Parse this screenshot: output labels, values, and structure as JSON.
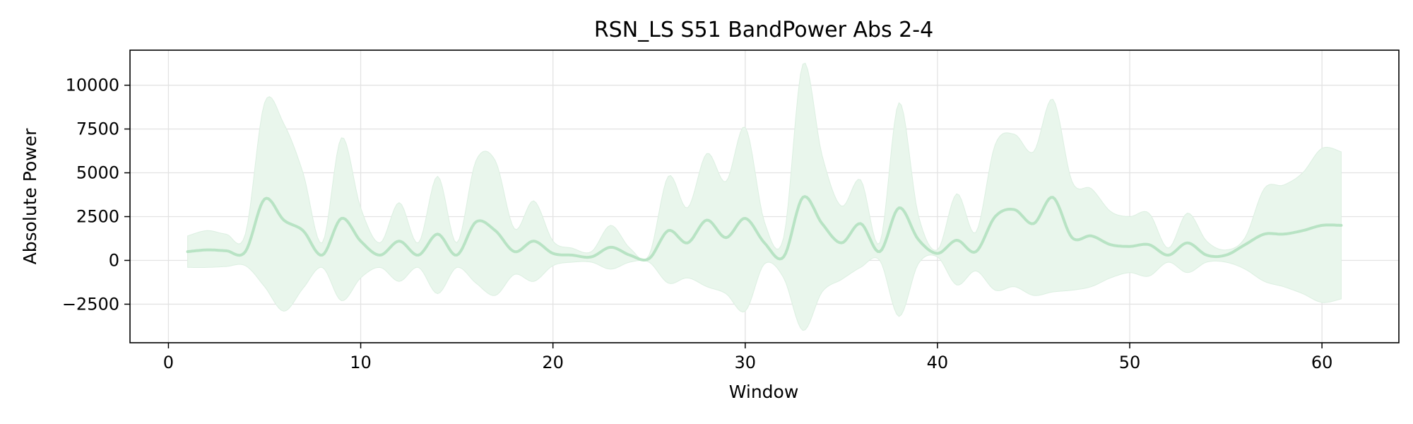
{
  "chart_data": {
    "type": "line",
    "title": "RSN_LS S51 BandPower Abs 2-4",
    "xlabel": "Window",
    "ylabel": "Absolute Power",
    "xlim": [
      -2,
      64
    ],
    "ylim": [
      -4700,
      12000
    ],
    "x_ticks": [
      0,
      10,
      20,
      30,
      40,
      50,
      60
    ],
    "y_ticks": [
      -2500,
      0,
      2500,
      5000,
      7500,
      10000
    ],
    "y_tick_labels": [
      "−2500",
      "0",
      "2500",
      "5000",
      "7500",
      "10000"
    ],
    "grid": true,
    "colors": {
      "line": "#b8e3c4",
      "band": "#e9f6ec",
      "band_edge": "#dcefe1",
      "grid": "#e3e3e3",
      "axis": "#000000"
    },
    "series": [
      {
        "x": [
          1,
          2,
          3,
          4,
          5,
          6,
          7,
          8,
          9,
          10,
          11,
          12,
          13,
          14,
          15,
          16,
          17,
          18,
          19,
          20,
          21,
          22,
          23,
          24,
          25,
          26,
          27,
          28,
          29,
          30,
          31,
          32,
          33,
          34,
          35,
          36,
          37,
          38,
          39,
          40,
          41,
          42,
          43,
          44,
          45,
          46,
          47,
          48,
          49,
          50,
          51,
          52,
          53,
          54,
          55,
          56,
          57,
          58,
          59,
          60,
          61
        ],
        "mean": [
          500,
          600,
          550,
          500,
          3500,
          2300,
          1700,
          300,
          2400,
          1100,
          300,
          1100,
          300,
          1500,
          300,
          2200,
          1700,
          500,
          1100,
          400,
          300,
          200,
          750,
          300,
          100,
          1700,
          1000,
          2300,
          1300,
          2400,
          1000,
          200,
          3600,
          2100,
          1000,
          2100,
          500,
          3000,
          1200,
          400,
          1150,
          500,
          2500,
          2900,
          2100,
          3600,
          1300,
          1400,
          900,
          800,
          900,
          300,
          1000,
          300,
          300,
          900,
          1500,
          1500,
          1700,
          2000,
          2000
        ],
        "upper": [
          1400,
          1700,
          1500,
          1500,
          9000,
          7800,
          5000,
          1000,
          7000,
          3000,
          1000,
          3300,
          1000,
          4800,
          1000,
          5700,
          5700,
          1800,
          3400,
          1100,
          700,
          500,
          2000,
          700,
          300,
          4800,
          3000,
          6100,
          4500,
          7600,
          2200,
          1300,
          11200,
          6000,
          3100,
          4600,
          1000,
          9000,
          2600,
          600,
          3800,
          1600,
          6600,
          7200,
          6200,
          9200,
          4500,
          4100,
          2800,
          2500,
          2700,
          700,
          2700,
          1100,
          600,
          1300,
          4100,
          4300,
          5000,
          6400,
          6200
        ],
        "lower": [
          -400,
          -400,
          -350,
          -300,
          -1500,
          -2900,
          -1600,
          -400,
          -2300,
          -1000,
          -400,
          -1200,
          -400,
          -1900,
          -400,
          -1300,
          -2000,
          -800,
          -1200,
          -300,
          -100,
          -100,
          -500,
          -100,
          -100,
          -1300,
          -1000,
          -1500,
          -1900,
          -2900,
          -200,
          -1000,
          -4000,
          -1800,
          -1100,
          -400,
          0,
          -3200,
          -200,
          200,
          -1400,
          -600,
          -1700,
          -1500,
          -2000,
          -1800,
          -1700,
          -1500,
          -1000,
          -700,
          -900,
          -100,
          -700,
          -100,
          -100,
          -500,
          -1200,
          -1500,
          -1900,
          -2400,
          -2200
        ]
      }
    ]
  }
}
